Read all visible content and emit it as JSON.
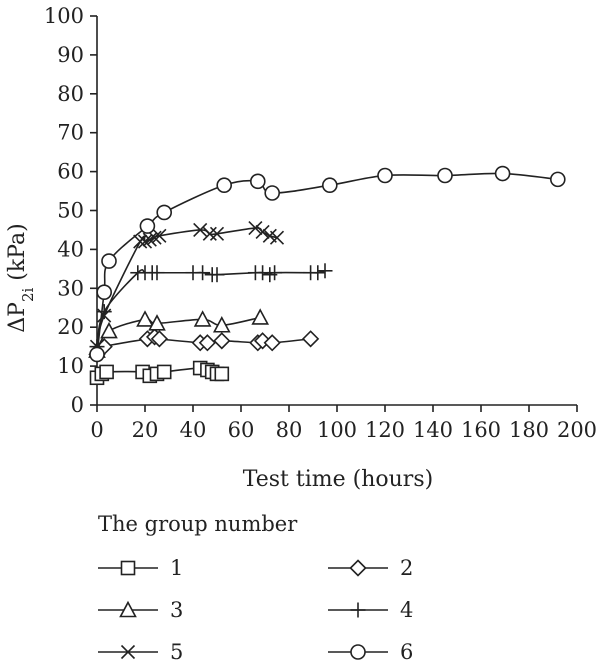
{
  "chart_data": {
    "type": "line",
    "title": "",
    "xlabel": "Test time (hours)",
    "ylabel": "ΔP",
    "ylabel_sub": "2i",
    "ylabel_unit": " (kPa)",
    "xlim": [
      0,
      200
    ],
    "ylim": [
      0,
      100
    ],
    "xticks": [
      0,
      20,
      40,
      60,
      80,
      100,
      120,
      140,
      160,
      180,
      200
    ],
    "yticks": [
      0,
      10,
      20,
      30,
      40,
      50,
      60,
      70,
      80,
      90,
      100
    ],
    "grid": false,
    "legend_title": "The group number",
    "legend_position": "bottom",
    "series": [
      {
        "name": "1",
        "marker": "square",
        "x": [
          0,
          2,
          4,
          19,
          22,
          25,
          28,
          43,
          46,
          48,
          50,
          52
        ],
        "y": [
          7,
          8,
          8.5,
          8.5,
          7.5,
          8,
          8.5,
          9.5,
          9,
          8.5,
          8,
          8
        ]
      },
      {
        "name": "2",
        "marker": "diamond",
        "x": [
          0,
          3,
          21,
          24,
          26,
          43,
          46,
          52,
          67,
          69,
          73,
          89
        ],
        "y": [
          13,
          15,
          17,
          17.5,
          17,
          16,
          16,
          16.5,
          16,
          16.5,
          16,
          17
        ]
      },
      {
        "name": "3",
        "marker": "triangle",
        "x": [
          0,
          5,
          20,
          25,
          44,
          52,
          68
        ],
        "y": [
          14,
          19,
          22,
          21,
          22,
          20.5,
          22.5
        ]
      },
      {
        "name": "4",
        "marker": "plus",
        "x": [
          0,
          3,
          17,
          20,
          23,
          25,
          40,
          44,
          48,
          50,
          66,
          69,
          72,
          74,
          89,
          92,
          95
        ],
        "y": [
          15,
          24,
          34,
          34,
          34,
          34,
          34,
          34,
          33.5,
          33.5,
          34,
          34,
          33.5,
          34,
          34,
          34,
          34.5
        ]
      },
      {
        "name": "5",
        "marker": "x",
        "x": [
          0,
          3,
          18,
          20,
          22,
          24,
          26,
          43,
          47,
          50,
          66,
          69,
          72,
          75
        ],
        "y": [
          15,
          23,
          42,
          42,
          42.5,
          43,
          43.5,
          45,
          44,
          44,
          45.5,
          44.5,
          43.5,
          43
        ]
      },
      {
        "name": "6",
        "marker": "circle",
        "x": [
          0,
          3,
          5,
          21,
          28,
          53,
          67,
          73,
          97,
          120,
          145,
          169,
          192
        ],
        "y": [
          13,
          29,
          37,
          46,
          49.5,
          56.5,
          57.5,
          54.5,
          56.5,
          59,
          59,
          59.5,
          58
        ]
      }
    ]
  }
}
